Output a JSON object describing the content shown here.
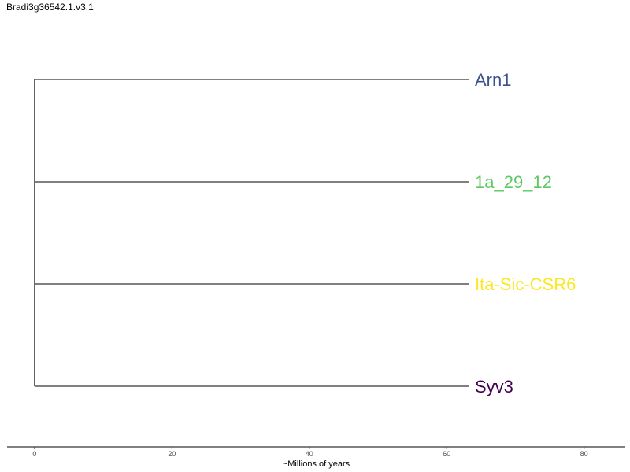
{
  "title": "Bradi3g36542.1.v3.1",
  "chart_data": {
    "type": "tree",
    "xlabel": "~Millions of years",
    "xlim": [
      -4,
      86
    ],
    "x_ticks": [
      0,
      20,
      40,
      60,
      80
    ],
    "x_tick_labels": [
      "0",
      "20",
      "40",
      "60",
      "80"
    ],
    "tips": [
      {
        "label": "Arn1",
        "branch_length": 63.3,
        "color": "#3b528b"
      },
      {
        "label": "1a_29_12",
        "branch_length": 63.3,
        "color": "#5ec962"
      },
      {
        "label": "Ita-Sic-CSR6",
        "branch_length": 63.3,
        "color": "#fde725"
      },
      {
        "label": "Syv3",
        "branch_length": 63.3,
        "color": "#440154"
      }
    ],
    "line_color": "#000000"
  }
}
